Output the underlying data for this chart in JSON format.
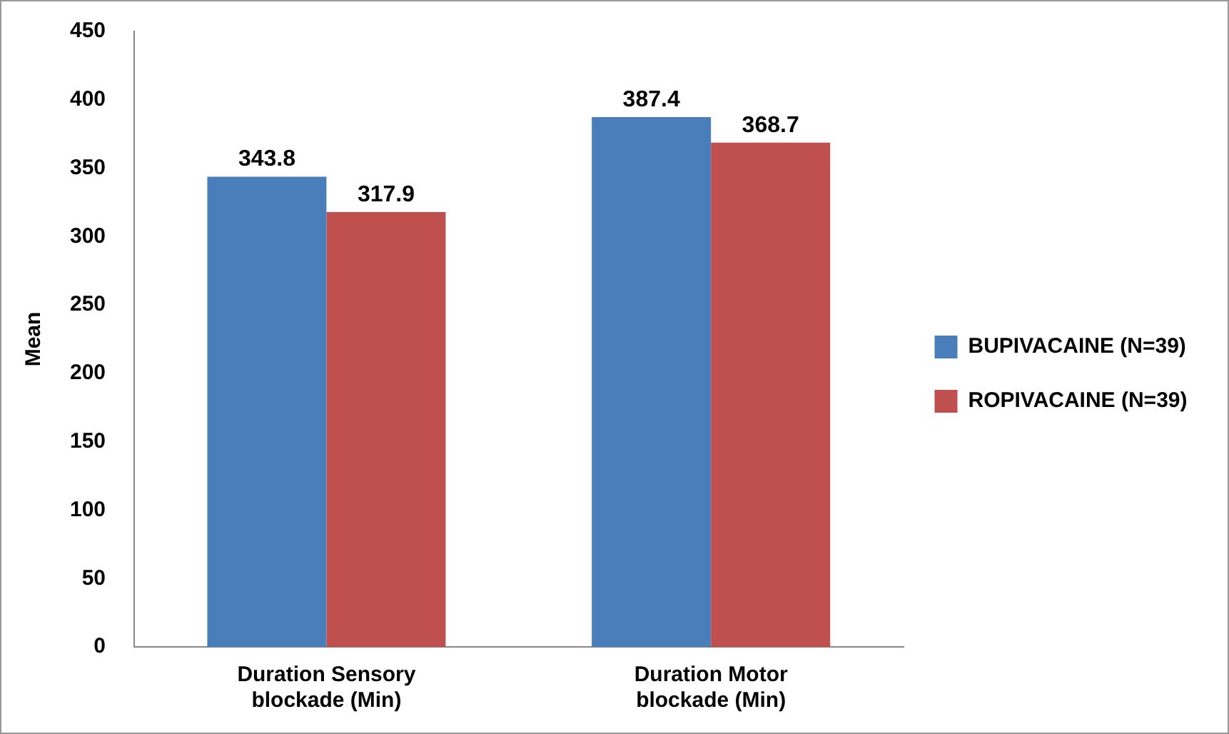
{
  "chart_data": {
    "type": "bar",
    "ylabel": "Mean",
    "categories": [
      "Duration Sensory blockade (Min)",
      "Duration Motor blockade (Min)"
    ],
    "series": [
      {
        "name": "BUPIVACAINE (N=39)",
        "color": "#4a7ebb",
        "values": [
          343.8,
          387.4
        ]
      },
      {
        "name": "ROPIVACAINE (N=39)",
        "color": "#c0504d",
        "values": [
          317.9,
          368.7
        ]
      }
    ],
    "ylim": [
      0,
      450
    ],
    "yticks": [
      0,
      50,
      100,
      150,
      200,
      250,
      300,
      350,
      400,
      450
    ],
    "grid": false,
    "legend": "right",
    "data_labels": true
  }
}
